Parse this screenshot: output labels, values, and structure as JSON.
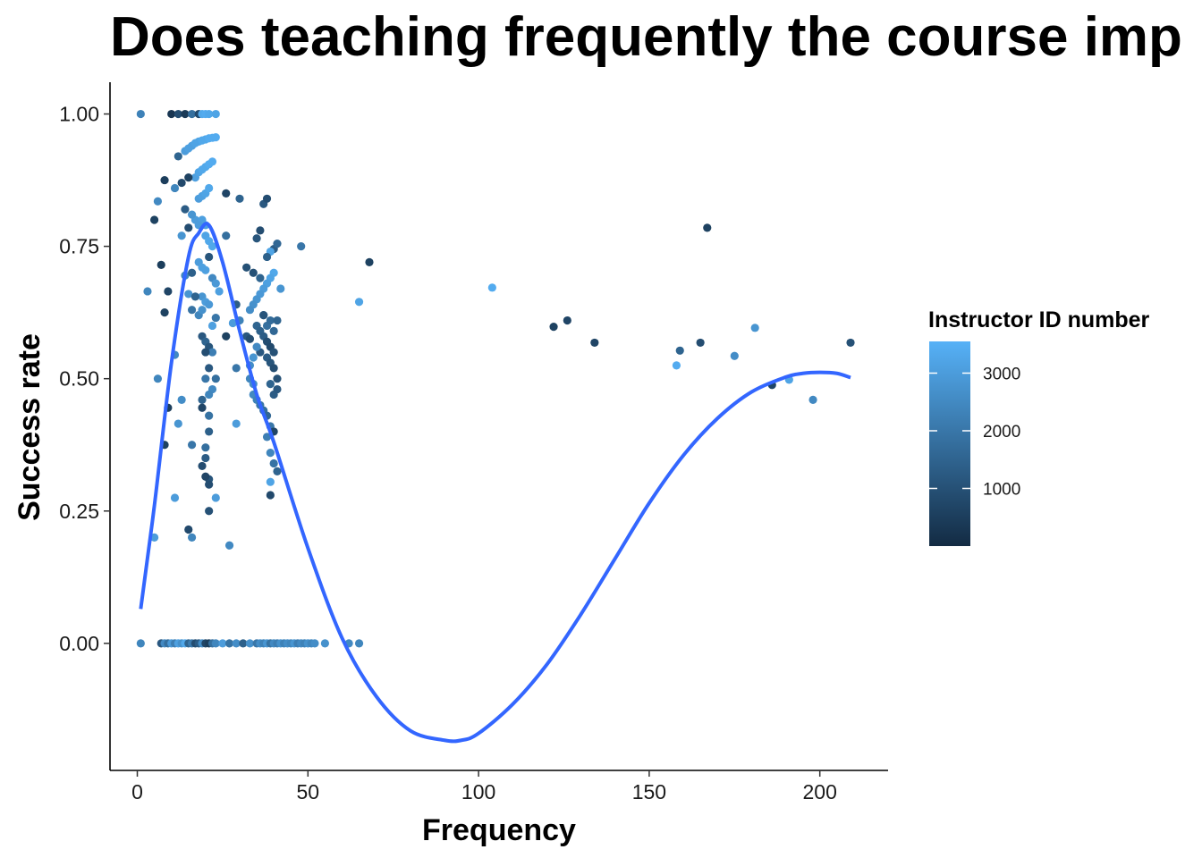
{
  "chart_data": {
    "type": "scatter",
    "title": "Does teaching frequently the course imp",
    "xlabel": "Frequency",
    "ylabel": "Success rate",
    "xlim": [
      -8,
      220
    ],
    "ylim": [
      -0.24,
      1.06
    ],
    "x_ticks": [
      0,
      50,
      100,
      150,
      200
    ],
    "x_tick_labels": [
      "0",
      "50",
      "100",
      "150",
      "200"
    ],
    "y_ticks": [
      0,
      0.25,
      0.5,
      0.75,
      1.0
    ],
    "y_tick_labels": [
      "0.00",
      "0.25",
      "0.50",
      "0.75",
      "1.00"
    ],
    "grid": false,
    "legend": {
      "title": "Instructor ID number",
      "placement": "right",
      "min": 0,
      "max": 3550,
      "ticks": [
        1000,
        2000,
        3000
      ],
      "tick_labels": [
        "1000",
        "2000",
        "3000"
      ],
      "color_low": "#132B43",
      "color_high": "#56B1F7"
    },
    "smooth_color": "#3366FF",
    "points": [
      {
        "x": 1,
        "y": 1.0,
        "id": 2300
      },
      {
        "x": 10,
        "y": 1.0,
        "id": 300
      },
      {
        "x": 12,
        "y": 1.0,
        "id": 900
      },
      {
        "x": 14,
        "y": 1.0,
        "id": 400
      },
      {
        "x": 16,
        "y": 1.0,
        "id": 1800
      },
      {
        "x": 18,
        "y": 1.0,
        "id": 800
      },
      {
        "x": 19,
        "y": 1.0,
        "id": 3300
      },
      {
        "x": 20,
        "y": 1.0,
        "id": 3400
      },
      {
        "x": 21,
        "y": 1.0,
        "id": 3300
      },
      {
        "x": 23,
        "y": 1.0,
        "id": 3200
      },
      {
        "x": 14,
        "y": 0.93,
        "id": 3000
      },
      {
        "x": 15,
        "y": 0.935,
        "id": 3100
      },
      {
        "x": 16,
        "y": 0.94,
        "id": 3100
      },
      {
        "x": 17,
        "y": 0.945,
        "id": 3200
      },
      {
        "x": 18,
        "y": 0.948,
        "id": 3200
      },
      {
        "x": 19,
        "y": 0.95,
        "id": 3300
      },
      {
        "x": 20,
        "y": 0.952,
        "id": 3300
      },
      {
        "x": 21,
        "y": 0.954,
        "id": 3400
      },
      {
        "x": 22,
        "y": 0.955,
        "id": 3400
      },
      {
        "x": 23,
        "y": 0.956,
        "id": 3400
      },
      {
        "x": 12,
        "y": 0.92,
        "id": 1500
      },
      {
        "x": 17,
        "y": 0.88,
        "id": 3100
      },
      {
        "x": 18,
        "y": 0.89,
        "id": 3200
      },
      {
        "x": 19,
        "y": 0.895,
        "id": 3300
      },
      {
        "x": 20,
        "y": 0.9,
        "id": 3300
      },
      {
        "x": 21,
        "y": 0.905,
        "id": 3400
      },
      {
        "x": 22,
        "y": 0.91,
        "id": 3400
      },
      {
        "x": 8,
        "y": 0.875,
        "id": 500
      },
      {
        "x": 11,
        "y": 0.86,
        "id": 2400
      },
      {
        "x": 13,
        "y": 0.87,
        "id": 800
      },
      {
        "x": 15,
        "y": 0.88,
        "id": 600
      },
      {
        "x": 18,
        "y": 0.84,
        "id": 3000
      },
      {
        "x": 19,
        "y": 0.845,
        "id": 3100
      },
      {
        "x": 20,
        "y": 0.85,
        "id": 3200
      },
      {
        "x": 21,
        "y": 0.86,
        "id": 3300
      },
      {
        "x": 26,
        "y": 0.85,
        "id": 700
      },
      {
        "x": 30,
        "y": 0.84,
        "id": 1500
      },
      {
        "x": 37,
        "y": 0.83,
        "id": 1200
      },
      {
        "x": 38,
        "y": 0.84,
        "id": 900
      },
      {
        "x": 6,
        "y": 0.835,
        "id": 2500
      },
      {
        "x": 14,
        "y": 0.82,
        "id": 1300
      },
      {
        "x": 5,
        "y": 0.8,
        "id": 600
      },
      {
        "x": 17,
        "y": 0.8,
        "id": 3000
      },
      {
        "x": 19,
        "y": 0.8,
        "id": 3100
      },
      {
        "x": 20,
        "y": 0.79,
        "id": 3100
      },
      {
        "x": 18,
        "y": 0.79,
        "id": 3000
      },
      {
        "x": 16,
        "y": 0.81,
        "id": 2800
      },
      {
        "x": 13,
        "y": 0.77,
        "id": 2800
      },
      {
        "x": 15,
        "y": 0.785,
        "id": 900
      },
      {
        "x": 20,
        "y": 0.77,
        "id": 3200
      },
      {
        "x": 21,
        "y": 0.76,
        "id": 3300
      },
      {
        "x": 22,
        "y": 0.75,
        "id": 3300
      },
      {
        "x": 26,
        "y": 0.77,
        "id": 1800
      },
      {
        "x": 36,
        "y": 0.78,
        "id": 900
      },
      {
        "x": 35,
        "y": 0.765,
        "id": 1100
      },
      {
        "x": 40,
        "y": 0.745,
        "id": 1300
      },
      {
        "x": 41,
        "y": 0.755,
        "id": 1600
      },
      {
        "x": 48,
        "y": 0.75,
        "id": 2000
      },
      {
        "x": 39,
        "y": 0.74,
        "id": 3200
      },
      {
        "x": 34,
        "y": 0.7,
        "id": 1000
      },
      {
        "x": 38,
        "y": 0.73,
        "id": 1400
      },
      {
        "x": 40,
        "y": 0.7,
        "id": 3300
      },
      {
        "x": 39,
        "y": 0.69,
        "id": 3200
      },
      {
        "x": 38,
        "y": 0.68,
        "id": 3100
      },
      {
        "x": 37,
        "y": 0.67,
        "id": 3000
      },
      {
        "x": 36,
        "y": 0.66,
        "id": 2900
      },
      {
        "x": 35,
        "y": 0.65,
        "id": 2800
      },
      {
        "x": 34,
        "y": 0.64,
        "id": 2700
      },
      {
        "x": 33,
        "y": 0.63,
        "id": 2600
      },
      {
        "x": 37,
        "y": 0.62,
        "id": 2000
      },
      {
        "x": 42,
        "y": 0.67,
        "id": 2800
      },
      {
        "x": 32,
        "y": 0.71,
        "id": 1000
      },
      {
        "x": 36,
        "y": 0.69,
        "id": 1500
      },
      {
        "x": 68,
        "y": 0.72,
        "id": 600
      },
      {
        "x": 7,
        "y": 0.715,
        "id": 500
      },
      {
        "x": 3,
        "y": 0.665,
        "id": 2400
      },
      {
        "x": 9,
        "y": 0.665,
        "id": 700
      },
      {
        "x": 14,
        "y": 0.695,
        "id": 2400
      },
      {
        "x": 16,
        "y": 0.7,
        "id": 1400
      },
      {
        "x": 18,
        "y": 0.72,
        "id": 3000
      },
      {
        "x": 19,
        "y": 0.71,
        "id": 3100
      },
      {
        "x": 20,
        "y": 0.705,
        "id": 3100
      },
      {
        "x": 21,
        "y": 0.73,
        "id": 1100
      },
      {
        "x": 22,
        "y": 0.69,
        "id": 2500
      },
      {
        "x": 23,
        "y": 0.68,
        "id": 2900
      },
      {
        "x": 24,
        "y": 0.665,
        "id": 3100
      },
      {
        "x": 19,
        "y": 0.655,
        "id": 2800
      },
      {
        "x": 20,
        "y": 0.645,
        "id": 3000
      },
      {
        "x": 21,
        "y": 0.64,
        "id": 2900
      },
      {
        "x": 15,
        "y": 0.66,
        "id": 2800
      },
      {
        "x": 17,
        "y": 0.655,
        "id": 1500
      },
      {
        "x": 8,
        "y": 0.625,
        "id": 600
      },
      {
        "x": 16,
        "y": 0.63,
        "id": 1900
      },
      {
        "x": 18,
        "y": 0.62,
        "id": 2400
      },
      {
        "x": 19,
        "y": 0.63,
        "id": 2700
      },
      {
        "x": 22,
        "y": 0.6,
        "id": 3100
      },
      {
        "x": 23,
        "y": 0.615,
        "id": 2000
      },
      {
        "x": 28,
        "y": 0.605,
        "id": 3000
      },
      {
        "x": 30,
        "y": 0.61,
        "id": 2300
      },
      {
        "x": 29,
        "y": 0.64,
        "id": 1300
      },
      {
        "x": 26,
        "y": 0.58,
        "id": 600
      },
      {
        "x": 19,
        "y": 0.58,
        "id": 1200
      },
      {
        "x": 20,
        "y": 0.57,
        "id": 1500
      },
      {
        "x": 21,
        "y": 0.56,
        "id": 1100
      },
      {
        "x": 22,
        "y": 0.55,
        "id": 2200
      },
      {
        "x": 20,
        "y": 0.55,
        "id": 900
      },
      {
        "x": 11,
        "y": 0.545,
        "id": 2500
      },
      {
        "x": 32,
        "y": 0.58,
        "id": 1200
      },
      {
        "x": 33,
        "y": 0.575,
        "id": 900
      },
      {
        "x": 35,
        "y": 0.6,
        "id": 1500
      },
      {
        "x": 36,
        "y": 0.59,
        "id": 1400
      },
      {
        "x": 37,
        "y": 0.58,
        "id": 1300
      },
      {
        "x": 38,
        "y": 0.6,
        "id": 1800
      },
      {
        "x": 39,
        "y": 0.61,
        "id": 1700
      },
      {
        "x": 40,
        "y": 0.59,
        "id": 1600
      },
      {
        "x": 41,
        "y": 0.61,
        "id": 1500
      },
      {
        "x": 37,
        "y": 0.62,
        "id": 1100
      },
      {
        "x": 38,
        "y": 0.57,
        "id": 900
      },
      {
        "x": 39,
        "y": 0.56,
        "id": 800
      },
      {
        "x": 40,
        "y": 0.55,
        "id": 1000
      },
      {
        "x": 36,
        "y": 0.55,
        "id": 1200
      },
      {
        "x": 35,
        "y": 0.56,
        "id": 2500
      },
      {
        "x": 34,
        "y": 0.54,
        "id": 2800
      },
      {
        "x": 33,
        "y": 0.525,
        "id": 2600
      },
      {
        "x": 38,
        "y": 0.54,
        "id": 1300
      },
      {
        "x": 39,
        "y": 0.53,
        "id": 1100
      },
      {
        "x": 40,
        "y": 0.52,
        "id": 900
      },
      {
        "x": 41,
        "y": 0.5,
        "id": 1000
      },
      {
        "x": 39,
        "y": 0.49,
        "id": 1500
      },
      {
        "x": 40,
        "y": 0.47,
        "id": 1300
      },
      {
        "x": 41,
        "y": 0.48,
        "id": 1200
      },
      {
        "x": 34,
        "y": 0.47,
        "id": 2500
      },
      {
        "x": 35,
        "y": 0.46,
        "id": 2300
      },
      {
        "x": 36,
        "y": 0.45,
        "id": 2000
      },
      {
        "x": 37,
        "y": 0.44,
        "id": 1800
      },
      {
        "x": 38,
        "y": 0.43,
        "id": 1600
      },
      {
        "x": 33,
        "y": 0.5,
        "id": 2400
      },
      {
        "x": 34,
        "y": 0.49,
        "id": 2600
      },
      {
        "x": 29,
        "y": 0.52,
        "id": 2000
      },
      {
        "x": 23,
        "y": 0.5,
        "id": 1800
      },
      {
        "x": 22,
        "y": 0.48,
        "id": 2500
      },
      {
        "x": 21,
        "y": 0.47,
        "id": 2400
      },
      {
        "x": 20,
        "y": 0.5,
        "id": 2000
      },
      {
        "x": 19,
        "y": 0.46,
        "id": 1500
      },
      {
        "x": 21,
        "y": 0.52,
        "id": 1200
      },
      {
        "x": 6,
        "y": 0.5,
        "id": 2400
      },
      {
        "x": 13,
        "y": 0.46,
        "id": 2600
      },
      {
        "x": 9,
        "y": 0.445,
        "id": 500
      },
      {
        "x": 12,
        "y": 0.415,
        "id": 2800
      },
      {
        "x": 19,
        "y": 0.445,
        "id": 700
      },
      {
        "x": 21,
        "y": 0.43,
        "id": 1900
      },
      {
        "x": 29,
        "y": 0.415,
        "id": 3000
      },
      {
        "x": 38,
        "y": 0.39,
        "id": 2200
      },
      {
        "x": 39,
        "y": 0.41,
        "id": 2000
      },
      {
        "x": 40,
        "y": 0.4,
        "id": 700
      },
      {
        "x": 8,
        "y": 0.375,
        "id": 600
      },
      {
        "x": 16,
        "y": 0.375,
        "id": 2000
      },
      {
        "x": 20,
        "y": 0.37,
        "id": 1800
      },
      {
        "x": 21,
        "y": 0.4,
        "id": 1400
      },
      {
        "x": 39,
        "y": 0.36,
        "id": 2400
      },
      {
        "x": 40,
        "y": 0.34,
        "id": 1900
      },
      {
        "x": 41,
        "y": 0.325,
        "id": 1500
      },
      {
        "x": 20,
        "y": 0.35,
        "id": 1300
      },
      {
        "x": 19,
        "y": 0.335,
        "id": 900
      },
      {
        "x": 21,
        "y": 0.31,
        "id": 1100
      },
      {
        "x": 20,
        "y": 0.315,
        "id": 700
      },
      {
        "x": 21,
        "y": 0.3,
        "id": 900
      },
      {
        "x": 39,
        "y": 0.305,
        "id": 3200
      },
      {
        "x": 39,
        "y": 0.28,
        "id": 800
      },
      {
        "x": 11,
        "y": 0.275,
        "id": 3000
      },
      {
        "x": 23,
        "y": 0.275,
        "id": 3000
      },
      {
        "x": 21,
        "y": 0.25,
        "id": 1000
      },
      {
        "x": 15,
        "y": 0.215,
        "id": 800
      },
      {
        "x": 16,
        "y": 0.2,
        "id": 2400
      },
      {
        "x": 5,
        "y": 0.2,
        "id": 3000
      },
      {
        "x": 27,
        "y": 0.185,
        "id": 2500
      },
      {
        "x": 65,
        "y": 0.645,
        "id": 3200
      },
      {
        "x": 104,
        "y": 0.672,
        "id": 3400
      },
      {
        "x": 122,
        "y": 0.598,
        "id": 600
      },
      {
        "x": 126,
        "y": 0.61,
        "id": 700
      },
      {
        "x": 134,
        "y": 0.568,
        "id": 700
      },
      {
        "x": 158,
        "y": 0.525,
        "id": 3400
      },
      {
        "x": 159,
        "y": 0.553,
        "id": 1500
      },
      {
        "x": 165,
        "y": 0.568,
        "id": 900
      },
      {
        "x": 167,
        "y": 0.785,
        "id": 600
      },
      {
        "x": 175,
        "y": 0.543,
        "id": 2600
      },
      {
        "x": 181,
        "y": 0.596,
        "id": 2800
      },
      {
        "x": 186,
        "y": 0.488,
        "id": 700
      },
      {
        "x": 191,
        "y": 0.498,
        "id": 3200
      },
      {
        "x": 198,
        "y": 0.46,
        "id": 2500
      },
      {
        "x": 209,
        "y": 0.568,
        "id": 1000
      },
      {
        "x": 1,
        "y": 0.0,
        "id": 2400
      },
      {
        "x": 7,
        "y": 0.0,
        "id": 1200
      },
      {
        "x": 8,
        "y": 0.0,
        "id": 2500
      },
      {
        "x": 9,
        "y": 0.0,
        "id": 1800
      },
      {
        "x": 10,
        "y": 0.0,
        "id": 2900
      },
      {
        "x": 11,
        "y": 0.0,
        "id": 2200
      },
      {
        "x": 12,
        "y": 0.0,
        "id": 3100
      },
      {
        "x": 13,
        "y": 0.0,
        "id": 2700
      },
      {
        "x": 14,
        "y": 0.0,
        "id": 3300
      },
      {
        "x": 15,
        "y": 0.0,
        "id": 1500
      },
      {
        "x": 16,
        "y": 0.0,
        "id": 2100
      },
      {
        "x": 17,
        "y": 0.0,
        "id": 900
      },
      {
        "x": 18,
        "y": 0.0,
        "id": 1300
      },
      {
        "x": 19,
        "y": 0.0,
        "id": 2600
      },
      {
        "x": 20,
        "y": 0.0,
        "id": 700
      },
      {
        "x": 21,
        "y": 0.0,
        "id": 500
      },
      {
        "x": 22,
        "y": 0.0,
        "id": 1800
      },
      {
        "x": 23,
        "y": 0.0,
        "id": 2400
      },
      {
        "x": 25,
        "y": 0.0,
        "id": 3000
      },
      {
        "x": 27,
        "y": 0.0,
        "id": 1900
      },
      {
        "x": 29,
        "y": 0.0,
        "id": 2600
      },
      {
        "x": 31,
        "y": 0.0,
        "id": 1400
      },
      {
        "x": 33,
        "y": 0.0,
        "id": 2700
      },
      {
        "x": 35,
        "y": 0.0,
        "id": 2000
      },
      {
        "x": 36,
        "y": 0.0,
        "id": 2600
      },
      {
        "x": 37,
        "y": 0.0,
        "id": 2300
      },
      {
        "x": 38,
        "y": 0.0,
        "id": 2800
      },
      {
        "x": 39,
        "y": 0.0,
        "id": 1900
      },
      {
        "x": 40,
        "y": 0.0,
        "id": 2500
      },
      {
        "x": 41,
        "y": 0.0,
        "id": 2200
      },
      {
        "x": 42,
        "y": 0.0,
        "id": 2700
      },
      {
        "x": 43,
        "y": 0.0,
        "id": 2300
      },
      {
        "x": 44,
        "y": 0.0,
        "id": 2600
      },
      {
        "x": 45,
        "y": 0.0,
        "id": 2400
      },
      {
        "x": 46,
        "y": 0.0,
        "id": 2800
      },
      {
        "x": 47,
        "y": 0.0,
        "id": 2200
      },
      {
        "x": 48,
        "y": 0.0,
        "id": 2500
      },
      {
        "x": 49,
        "y": 0.0,
        "id": 2300
      },
      {
        "x": 50,
        "y": 0.0,
        "id": 2700
      },
      {
        "x": 51,
        "y": 0.0,
        "id": 2400
      },
      {
        "x": 52,
        "y": 0.0,
        "id": 2600
      },
      {
        "x": 55,
        "y": 0.0,
        "id": 2700
      },
      {
        "x": 62,
        "y": 0.0,
        "id": 2500
      },
      {
        "x": 65,
        "y": 0.0,
        "id": 2400
      }
    ],
    "smooth_line": {
      "x": [
        1,
        5,
        10,
        15,
        18,
        21,
        25,
        30,
        35,
        40,
        50,
        60,
        70,
        80,
        90,
        95,
        100,
        110,
        120,
        130,
        140,
        150,
        160,
        170,
        180,
        190,
        195,
        200,
        205,
        209
      ],
      "y": [
        0.065,
        0.26,
        0.53,
        0.73,
        0.775,
        0.79,
        0.72,
        0.59,
        0.47,
        0.38,
        0.18,
        0.01,
        -0.1,
        -0.165,
        -0.183,
        -0.183,
        -0.17,
        -0.115,
        -0.04,
        0.055,
        0.16,
        0.265,
        0.355,
        0.425,
        0.475,
        0.503,
        0.51,
        0.512,
        0.51,
        0.502
      ]
    }
  }
}
